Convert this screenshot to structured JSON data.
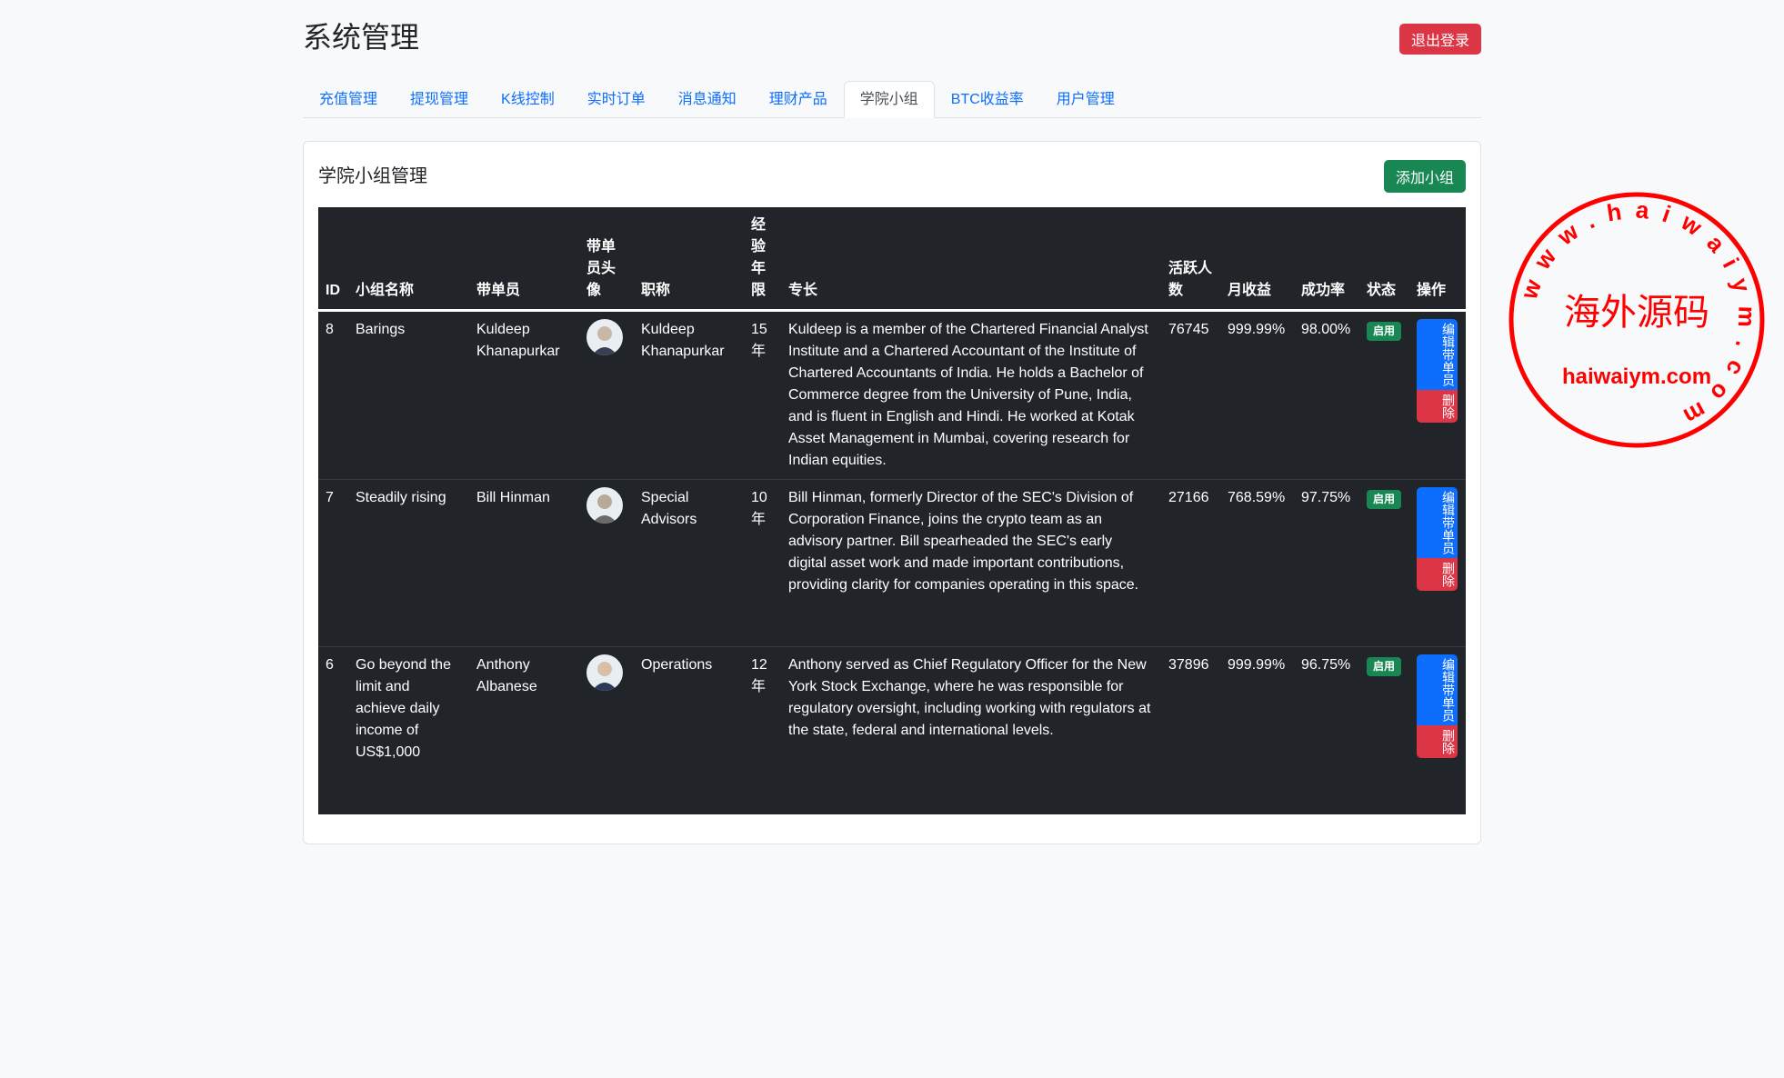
{
  "header": {
    "title": "系统管理",
    "logout_label": "退出登录"
  },
  "tabs": [
    {
      "label": "充值管理",
      "active": false
    },
    {
      "label": "提现管理",
      "active": false
    },
    {
      "label": "K线控制",
      "active": false
    },
    {
      "label": "实时订单",
      "active": false
    },
    {
      "label": "消息通知",
      "active": false
    },
    {
      "label": "理财产品",
      "active": false
    },
    {
      "label": "学院小组",
      "active": true
    },
    {
      "label": "BTC收益率",
      "active": false
    },
    {
      "label": "用户管理",
      "active": false
    }
  ],
  "card": {
    "title": "学院小组管理",
    "add_label": "添加小组"
  },
  "table": {
    "headers": [
      "ID",
      "小组名称",
      "带单员",
      "带单员头像",
      "职称",
      "经验年限",
      "专长",
      "活跃人数",
      "月收益",
      "成功率",
      "状态",
      "操作"
    ],
    "rows": [
      {
        "id": "8",
        "name": "Barings",
        "leader": "Kuldeep Khanapurkar",
        "title": "Kuldeep Khanapurkar",
        "exp": "15年",
        "bio": "Kuldeep is a member of the Chartered Financial Analyst Institute and a Chartered Accountant of the Institute of Chartered Accountants of India. He holds a Bachelor of Commerce degree from the University of Pune, India, and is fluent in English and Hindi. He worked at Kotak Asset Management in Mumbai, covering research for Indian equities.",
        "active": "76745",
        "monthly": "999.99%",
        "success": "98.00%",
        "status": "启用",
        "edit": "编辑带单员",
        "delete": "删除"
      },
      {
        "id": "7",
        "name": "Steadily rising",
        "leader": "Bill Hinman",
        "title": "Special Advisors",
        "exp": "10年",
        "bio": "Bill Hinman, formerly Director of the SEC's Division of Corporation Finance, joins the crypto team as an advisory partner. Bill spearheaded the SEC's early digital asset work and made important contributions, providing clarity for companies operating in this space.",
        "active": "27166",
        "monthly": "768.59%",
        "success": "97.75%",
        "status": "启用",
        "edit": "编辑带单员",
        "delete": "删除"
      },
      {
        "id": "6",
        "name": "Go beyond the limit and achieve daily income of US$1,000",
        "leader": "Anthony Albanese",
        "title": "Operations",
        "exp": "12年",
        "bio": "Anthony served as Chief Regulatory Officer for the New York Stock Exchange, where he was responsible for regulatory oversight, including working with regulators at the state, federal and international levels.",
        "active": "37896",
        "monthly": "999.99%",
        "success": "96.75%",
        "status": "启用",
        "edit": "编辑带单员",
        "delete": "删除"
      }
    ]
  },
  "watermark": {
    "ring_text": "www.haiwaiym.com",
    "center_text": "海外源码",
    "sub_text": "haiwaiym.com",
    "color": "#ff0000"
  },
  "colors": {
    "primary": "#0d6efd",
    "danger": "#dc3545",
    "success": "#198754",
    "table_bg": "#212529"
  }
}
